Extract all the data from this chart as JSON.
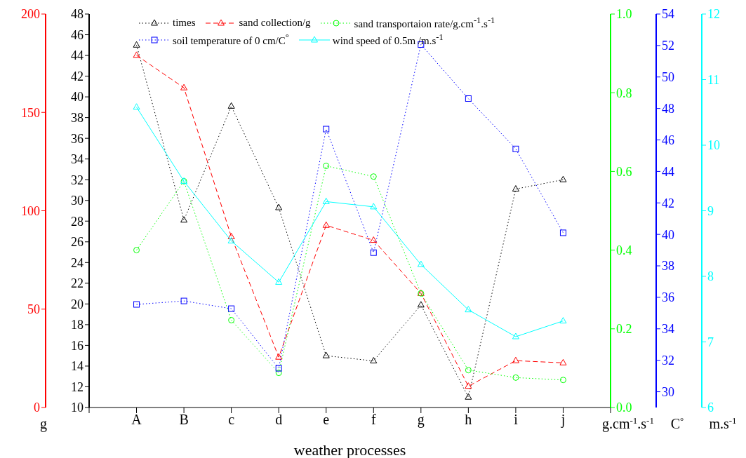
{
  "chart_data": [
    {
      "type": "line",
      "xlabel": "weather processes",
      "categories": [
        null,
        "A",
        "B",
        "c",
        "d",
        "e",
        "f",
        "g",
        "h",
        "i",
        "j",
        null
      ],
      "legend": "top",
      "grid": false,
      "ylim": [
        10,
        48
      ],
      "yticks": [
        10,
        12,
        14,
        16,
        18,
        20,
        22,
        24,
        26,
        28,
        30,
        32,
        34,
        36,
        38,
        40,
        42,
        44,
        46,
        48
      ],
      "y2lim": [
        0,
        200
      ],
      "y2ticks": [
        0,
        50,
        100,
        150,
        200
      ],
      "y2label": "g",
      "y3lim": [
        0,
        1
      ],
      "y3ticks": [
        {
          "value": 0,
          "label": "0.0"
        },
        0.2,
        0.4,
        0.6,
        0.8,
        {
          "value": 1,
          "label": "1.0"
        }
      ],
      "y3label": "g.cm$^{-1}$.s$^{-1}$",
      "series": [
        {
          "name": "times",
          "color": "#000000",
          "axis": "y",
          "marker": "triangle",
          "line_style": "dotted",
          "values": [
            null,
            45,
            28.1,
            39.1,
            29.3,
            15,
            14.5,
            19.9,
            11,
            31.1,
            32,
            null
          ]
        },
        {
          "name": "sand collection/g",
          "color": "#ff0000",
          "axis": "y2",
          "marker": "triangle",
          "line_style": "dashed",
          "values": [
            null,
            179,
            162.5,
            86.8,
            25.6,
            92.6,
            85,
            58,
            10.8,
            23.8,
            22.7,
            null
          ]
        },
        {
          "name": "sand transportaion rate/g.cm$^{-1}$.s$^{-1}$",
          "color": "#00ff00",
          "axis": "y3",
          "marker": "circle",
          "line_style": "dotted",
          "values": [
            null,
            0.4,
            0.575,
            0.222,
            0.088,
            0.614,
            0.587,
            0.29,
            0.095,
            0.076,
            0.07,
            null
          ]
        }
      ]
    },
    {
      "type": "line",
      "categories": [
        null,
        null,
        null,
        null,
        null,
        null,
        null,
        null,
        null,
        null,
        null,
        null
      ],
      "legend": "top",
      "tick_labels": "y",
      "ylim": [
        29,
        54
      ],
      "yticks": [
        30,
        32,
        34,
        36,
        38,
        40,
        42,
        44,
        46,
        48,
        50,
        52,
        54
      ],
      "ylabel": "C$^{°}$",
      "series": [
        {
          "name": "soil temperature of 0 cm/C$^{°}$",
          "color": "#0000ff",
          "marker": "square",
          "line_style": "dotted",
          "values": [
            null,
            35.55,
            35.77,
            35.28,
            31.49,
            46.69,
            38.84,
            52.06,
            48.63,
            45.43,
            40.1,
            null
          ]
        }
      ]
    },
    {
      "type": "line",
      "categories": [
        null,
        null,
        null,
        null,
        null,
        null,
        null,
        null,
        null,
        null,
        null,
        null
      ],
      "legend": "top",
      "tick_labels": "y",
      "ylim": [
        6,
        12
      ],
      "yticks": [
        6,
        7,
        8,
        9,
        10,
        11,
        12
      ],
      "ylabel": "m.s$^{-1}$",
      "series": [
        {
          "name": "wind speed of 0.5m /m.s$^{-1}$",
          "color": "#00ffff",
          "marker": "triangle",
          "line_style": "solid",
          "values": [
            null,
            10.58,
            9.45,
            8.54,
            7.91,
            9.14,
            9.06,
            8.18,
            7.49,
            7.08,
            7.32,
            null
          ]
        }
      ]
    }
  ]
}
